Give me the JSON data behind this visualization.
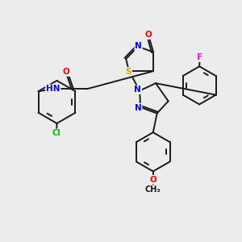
{
  "bg_color": "#ececec",
  "bond_color": "#1a1a1a",
  "atom_colors": {
    "N": "#0000ff",
    "O": "#ff0000",
    "S": "#ccaa00",
    "Cl": "#00bb00",
    "F": "#ff00ff",
    "H": "#008888",
    "C": "#1a1a1a"
  },
  "figsize": [
    3.0,
    3.0
  ],
  "dpi": 100
}
